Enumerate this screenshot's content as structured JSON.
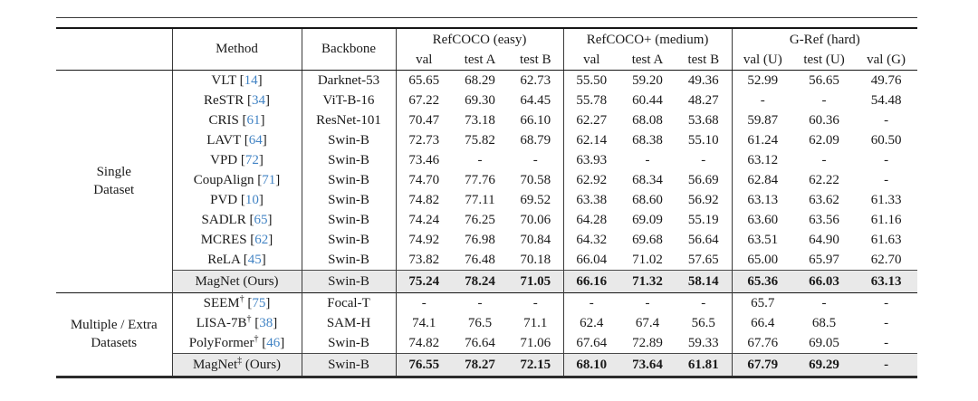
{
  "table": {
    "corner_label": "",
    "method_header": "Method",
    "backbone_header": "Backbone",
    "col_groups": [
      {
        "label": "RefCOCO (easy)",
        "sub": [
          "val",
          "test A",
          "test B"
        ]
      },
      {
        "label": "RefCOCO+ (medium)",
        "sub": [
          "val",
          "test A",
          "test B"
        ]
      },
      {
        "label": "G-Ref (hard)",
        "sub": [
          "val (U)",
          "test (U)",
          "val (G)"
        ]
      }
    ],
    "colors": {
      "citation": "#4183c4",
      "highlight_bg": "#e9e9e9",
      "rule": "#161616"
    },
    "sections": [
      {
        "group_label": [
          "Single",
          "Dataset"
        ],
        "rows": [
          {
            "method": "VLT",
            "cite": "14",
            "backbone": "Darknet-53",
            "values": [
              "65.65",
              "68.29",
              "62.73",
              "55.50",
              "59.20",
              "49.36",
              "52.99",
              "56.65",
              "49.76"
            ]
          },
          {
            "method": "ReSTR",
            "cite": "34",
            "backbone": "ViT-B-16",
            "values": [
              "67.22",
              "69.30",
              "64.45",
              "55.78",
              "60.44",
              "48.27",
              "-",
              "-",
              "54.48"
            ]
          },
          {
            "method": "CRIS",
            "cite": "61",
            "backbone": "ResNet-101",
            "values": [
              "70.47",
              "73.18",
              "66.10",
              "62.27",
              "68.08",
              "53.68",
              "59.87",
              "60.36",
              "-"
            ]
          },
          {
            "method": "LAVT",
            "cite": "64",
            "backbone": "Swin-B",
            "values": [
              "72.73",
              "75.82",
              "68.79",
              "62.14",
              "68.38",
              "55.10",
              "61.24",
              "62.09",
              "60.50"
            ]
          },
          {
            "method": "VPD",
            "cite": "72",
            "backbone": "Swin-B",
            "values": [
              "73.46",
              "-",
              "-",
              "63.93",
              "-",
              "-",
              "63.12",
              "-",
              "-"
            ]
          },
          {
            "method": "CoupAlign",
            "cite": "71",
            "backbone": "Swin-B",
            "values": [
              "74.70",
              "77.76",
              "70.58",
              "62.92",
              "68.34",
              "56.69",
              "62.84",
              "62.22",
              "-"
            ]
          },
          {
            "method": "PVD",
            "cite": "10",
            "backbone": "Swin-B",
            "values": [
              "74.82",
              "77.11",
              "69.52",
              "63.38",
              "68.60",
              "56.92",
              "63.13",
              "63.62",
              "61.33"
            ]
          },
          {
            "method": "SADLR",
            "cite": "65",
            "backbone": "Swin-B",
            "values": [
              "74.24",
              "76.25",
              "70.06",
              "64.28",
              "69.09",
              "55.19",
              "63.60",
              "63.56",
              "61.16"
            ]
          },
          {
            "method": "MCRES",
            "cite": "62",
            "backbone": "Swin-B",
            "values": [
              "74.92",
              "76.98",
              "70.84",
              "64.32",
              "69.68",
              "56.64",
              "63.51",
              "64.90",
              "61.63"
            ]
          },
          {
            "method": "ReLA",
            "cite": "45",
            "backbone": "Swin-B",
            "values": [
              "73.82",
              "76.48",
              "70.18",
              "66.04",
              "71.02",
              "57.65",
              "65.00",
              "65.97",
              "62.70"
            ]
          }
        ],
        "highlight_row": {
          "method": "MagNet",
          "sup": "",
          "suffix": " (Ours)",
          "backbone": "Swin-B",
          "values": [
            "75.24",
            "78.24",
            "71.05",
            "66.16",
            "71.32",
            "58.14",
            "65.36",
            "66.03",
            "63.13"
          ]
        }
      },
      {
        "group_label": [
          "Multiple / Extra",
          "Datasets"
        ],
        "rows": [
          {
            "method": "SEEM",
            "sup": "†",
            "cite": "75",
            "backbone": "Focal-T",
            "values": [
              "-",
              "-",
              "-",
              "-",
              "-",
              "-",
              "65.7",
              "-",
              "-"
            ]
          },
          {
            "method": "LISA-7B",
            "sup": "†",
            "cite": "38",
            "backbone": "SAM-H",
            "values": [
              "74.1",
              "76.5",
              "71.1",
              "62.4",
              "67.4",
              "56.5",
              "66.4",
              "68.5",
              "-"
            ]
          },
          {
            "method": "PolyFormer",
            "sup": "†",
            "cite": "46",
            "backbone": "Swin-B",
            "values": [
              "74.82",
              "76.64",
              "71.06",
              "67.64",
              "72.89",
              "59.33",
              "67.76",
              "69.05",
              "-"
            ]
          }
        ],
        "highlight_row": {
          "method": "MagNet",
          "sup": "‡",
          "suffix": " (Ours)",
          "backbone": "Swin-B",
          "values": [
            "76.55",
            "78.27",
            "72.15",
            "68.10",
            "73.64",
            "61.81",
            "67.79",
            "69.29",
            "-"
          ]
        }
      }
    ]
  }
}
